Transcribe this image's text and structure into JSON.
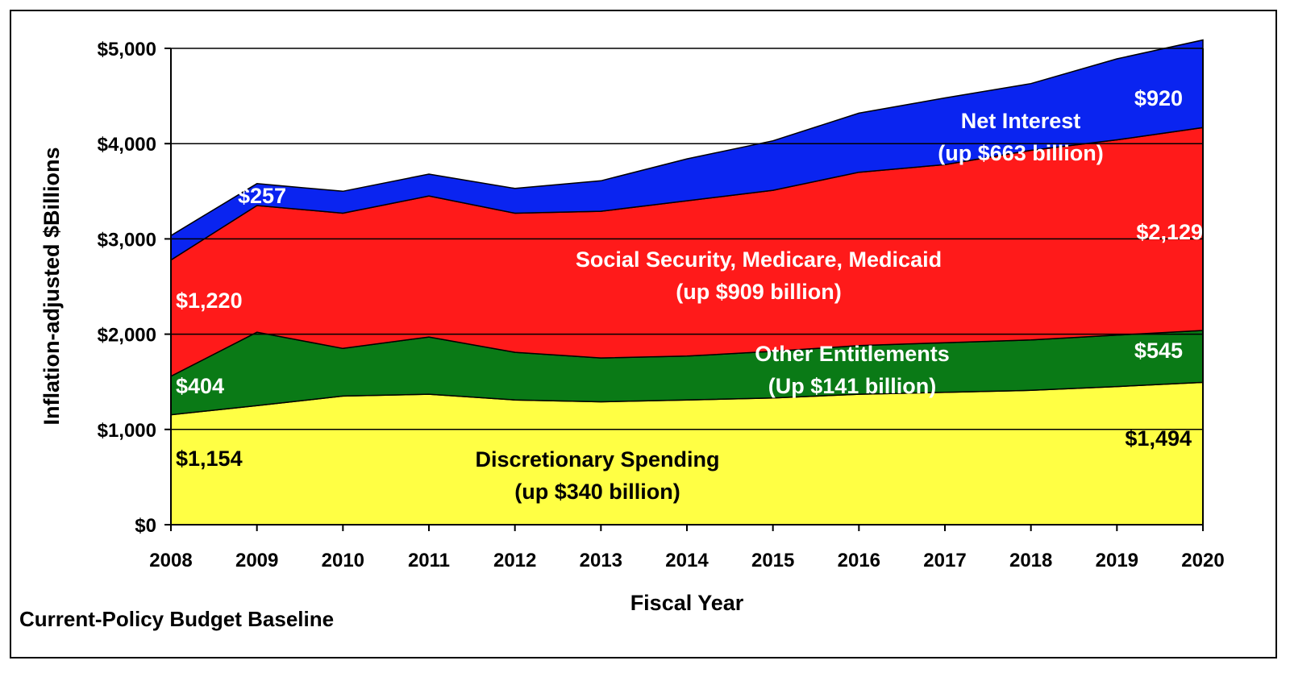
{
  "chart_data": {
    "type": "area",
    "stacked": true,
    "title": "",
    "xlabel": "Fiscal Year",
    "ylabel": "Inflation-adjusted $Billions",
    "x": [
      "2008",
      "2009",
      "2010",
      "2011",
      "2012",
      "2013",
      "2014",
      "2015",
      "2016",
      "2017",
      "2018",
      "2019",
      "2020"
    ],
    "ylim": [
      0,
      5000
    ],
    "yticks": [
      0,
      1000,
      2000,
      3000,
      4000,
      5000
    ],
    "ytick_labels": [
      "$0",
      "$1,000",
      "$2,000",
      "$3,000",
      "$4,000",
      "$5,000"
    ],
    "grid": "horizontal",
    "series": [
      {
        "name": "Discretionary Spending",
        "color": "#FFFF44",
        "values": [
          1154,
          1250,
          1350,
          1370,
          1310,
          1290,
          1310,
          1330,
          1370,
          1390,
          1410,
          1450,
          1494
        ]
      },
      {
        "name": "Other Entitlements",
        "color": "#0A7A16",
        "values": [
          404,
          770,
          500,
          600,
          500,
          460,
          460,
          490,
          510,
          520,
          530,
          540,
          545
        ]
      },
      {
        "name": "Social Security, Medicare, Medicaid",
        "color": "#FF1A1A",
        "values": [
          1220,
          1330,
          1420,
          1480,
          1460,
          1540,
          1630,
          1690,
          1820,
          1870,
          1990,
          2050,
          2129
        ]
      },
      {
        "name": "Net Interest",
        "color": "#0A24F0",
        "values": [
          257,
          230,
          230,
          230,
          260,
          320,
          440,
          520,
          620,
          700,
          700,
          850,
          920
        ]
      }
    ],
    "annotations": [
      {
        "text": "$257",
        "color": "#FFFFFF"
      },
      {
        "text": "$1,220",
        "color": "#FFFFFF"
      },
      {
        "text": "$404",
        "color": "#FFFFFF"
      },
      {
        "text": "$1,154",
        "color": "#000000"
      },
      {
        "text": "$920",
        "color": "#FFFFFF"
      },
      {
        "text": "$2,129",
        "color": "#FFFFFF"
      },
      {
        "text": "$545",
        "color": "#FFFFFF"
      },
      {
        "text": "$1,494",
        "color": "#000000"
      },
      {
        "text": "Net Interest",
        "color": "#FFFFFF"
      },
      {
        "text": "(up $663 billion)",
        "color": "#FFFFFF"
      },
      {
        "text": "Social Security, Medicare, Medicaid",
        "color": "#FFFFFF"
      },
      {
        "text": "(up $909 billion)",
        "color": "#FFFFFF"
      },
      {
        "text": "Other Entitlements",
        "color": "#FFFFFF"
      },
      {
        "text": "(Up $141 billion)",
        "color": "#FFFFFF"
      },
      {
        "text": "Discretionary Spending",
        "color": "#000000"
      },
      {
        "text": "(up $340 billion)",
        "color": "#000000"
      }
    ]
  },
  "footnote": "Current-Policy Budget Baseline"
}
